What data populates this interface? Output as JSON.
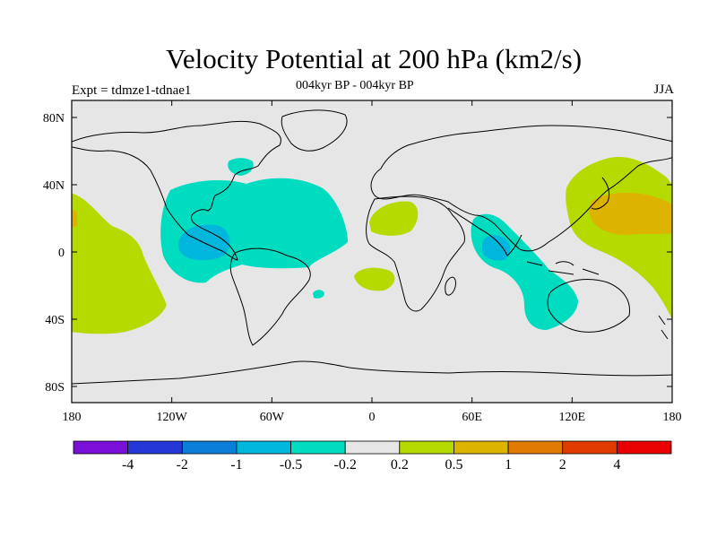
{
  "title": "Velocity Potential at 200 hPa (km2/s)",
  "subtitle_center": "004kyr BP - 004kyr BP",
  "subtitle_left": "Expt = tdmze1-tdnae1",
  "subtitle_right": "JJA",
  "axes": {
    "lon_ticks": [
      "180",
      "120W",
      "60W",
      "0",
      "60E",
      "120E",
      "180"
    ],
    "lat_ticks": [
      "80N",
      "40N",
      "0",
      "40S",
      "80S"
    ]
  },
  "colorbar": {
    "labels": [
      "-4",
      "-2",
      "-1",
      "-0.5",
      "-0.2",
      "0.2",
      "0.5",
      "1",
      "2",
      "4"
    ],
    "colors": [
      "#7a10d8",
      "#2538d6",
      "#0a7ed8",
      "#00b6dd",
      "#00dcc0",
      "#e6e6e6",
      "#b4da00",
      "#dcb400",
      "#e07a00",
      "#e03c00",
      "#e80000"
    ]
  },
  "map": {
    "background_color": "#e6e6e6",
    "regions": [
      {
        "name": "Atlantic/Americas",
        "level": "-0.5 to -0.2",
        "color": "#00dcc0"
      },
      {
        "name": "Eastern Pacific core",
        "level": "-1 to -0.5",
        "color": "#00b6dd"
      },
      {
        "name": "Indian Ocean",
        "level": "-0.5 to -0.2",
        "color": "#00dcc0"
      },
      {
        "name": "Indian Ocean core",
        "level": "-1 to -0.5",
        "color": "#00b6dd"
      },
      {
        "name": "Western Pacific",
        "level": "0.2 to 0.5",
        "color": "#b4da00"
      },
      {
        "name": "Western Pacific core",
        "level": "0.5 to 1",
        "color": "#dcb400"
      },
      {
        "name": "Central Pacific",
        "level": "0.2 to 0.5",
        "color": "#b4da00"
      },
      {
        "name": "North Africa",
        "level": "0.2 to 0.5",
        "color": "#b4da00"
      },
      {
        "name": "South Atlantic",
        "level": "0.2 to 0.5",
        "color": "#b4da00"
      }
    ]
  }
}
